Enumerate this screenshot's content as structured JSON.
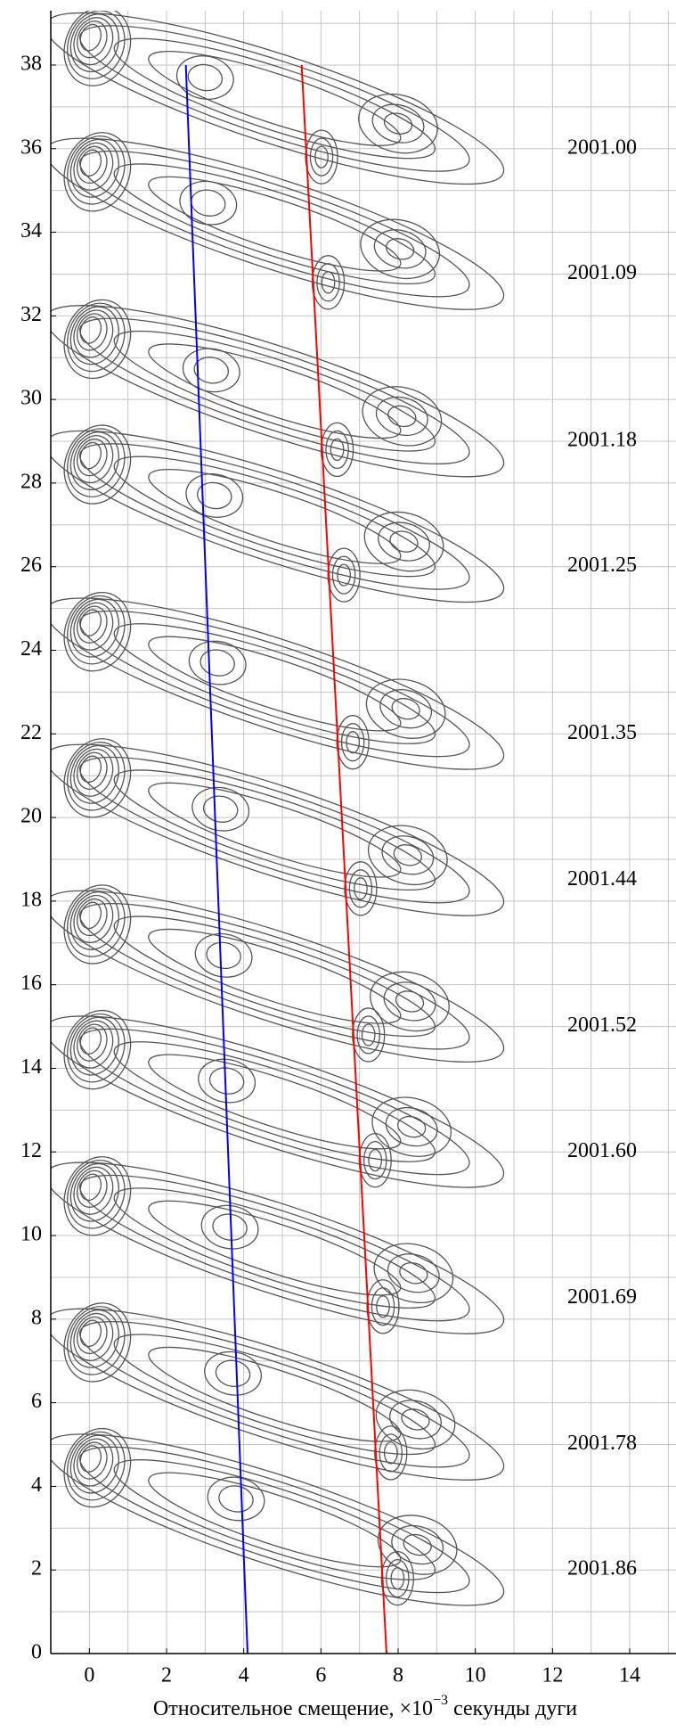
{
  "chart_data": {
    "type": "line",
    "xlabel": "Относительное смещение, ×10",
    "xlabel_exp": "−3",
    "xlabel_tail": " секунды дуги",
    "xlim": [
      -1,
      15.2
    ],
    "ylim": [
      0,
      39.3
    ],
    "xticks": [
      0,
      2,
      4,
      6,
      8,
      10,
      12,
      14
    ],
    "yticks": [
      0,
      2,
      4,
      6,
      8,
      10,
      12,
      14,
      16,
      18,
      20,
      22,
      24,
      26,
      28,
      30,
      32,
      34,
      36,
      38
    ],
    "grid": true,
    "minor_grid": true,
    "series": [
      {
        "color": "#0000ff",
        "x": [
          2.5,
          4.1
        ],
        "values": [
          38,
          0
        ]
      },
      {
        "color": "#ff0000",
        "x": [
          5.5,
          7.7
        ],
        "values": [
          38,
          0
        ]
      }
    ],
    "epochs": [
      {
        "label": "2001.00",
        "y": 36
      },
      {
        "label": "2001.09",
        "y": 33
      },
      {
        "label": "2001.18",
        "y": 29
      },
      {
        "label": "2001.25",
        "y": 26
      },
      {
        "label": "2001.35",
        "y": 22
      },
      {
        "label": "2001.44",
        "y": 18.5
      },
      {
        "label": "2001.52",
        "y": 15
      },
      {
        "label": "2001.60",
        "y": 12
      },
      {
        "label": "2001.69",
        "y": 8.5
      },
      {
        "label": "2001.78",
        "y": 5
      },
      {
        "label": "2001.86",
        "y": 2
      }
    ]
  }
}
